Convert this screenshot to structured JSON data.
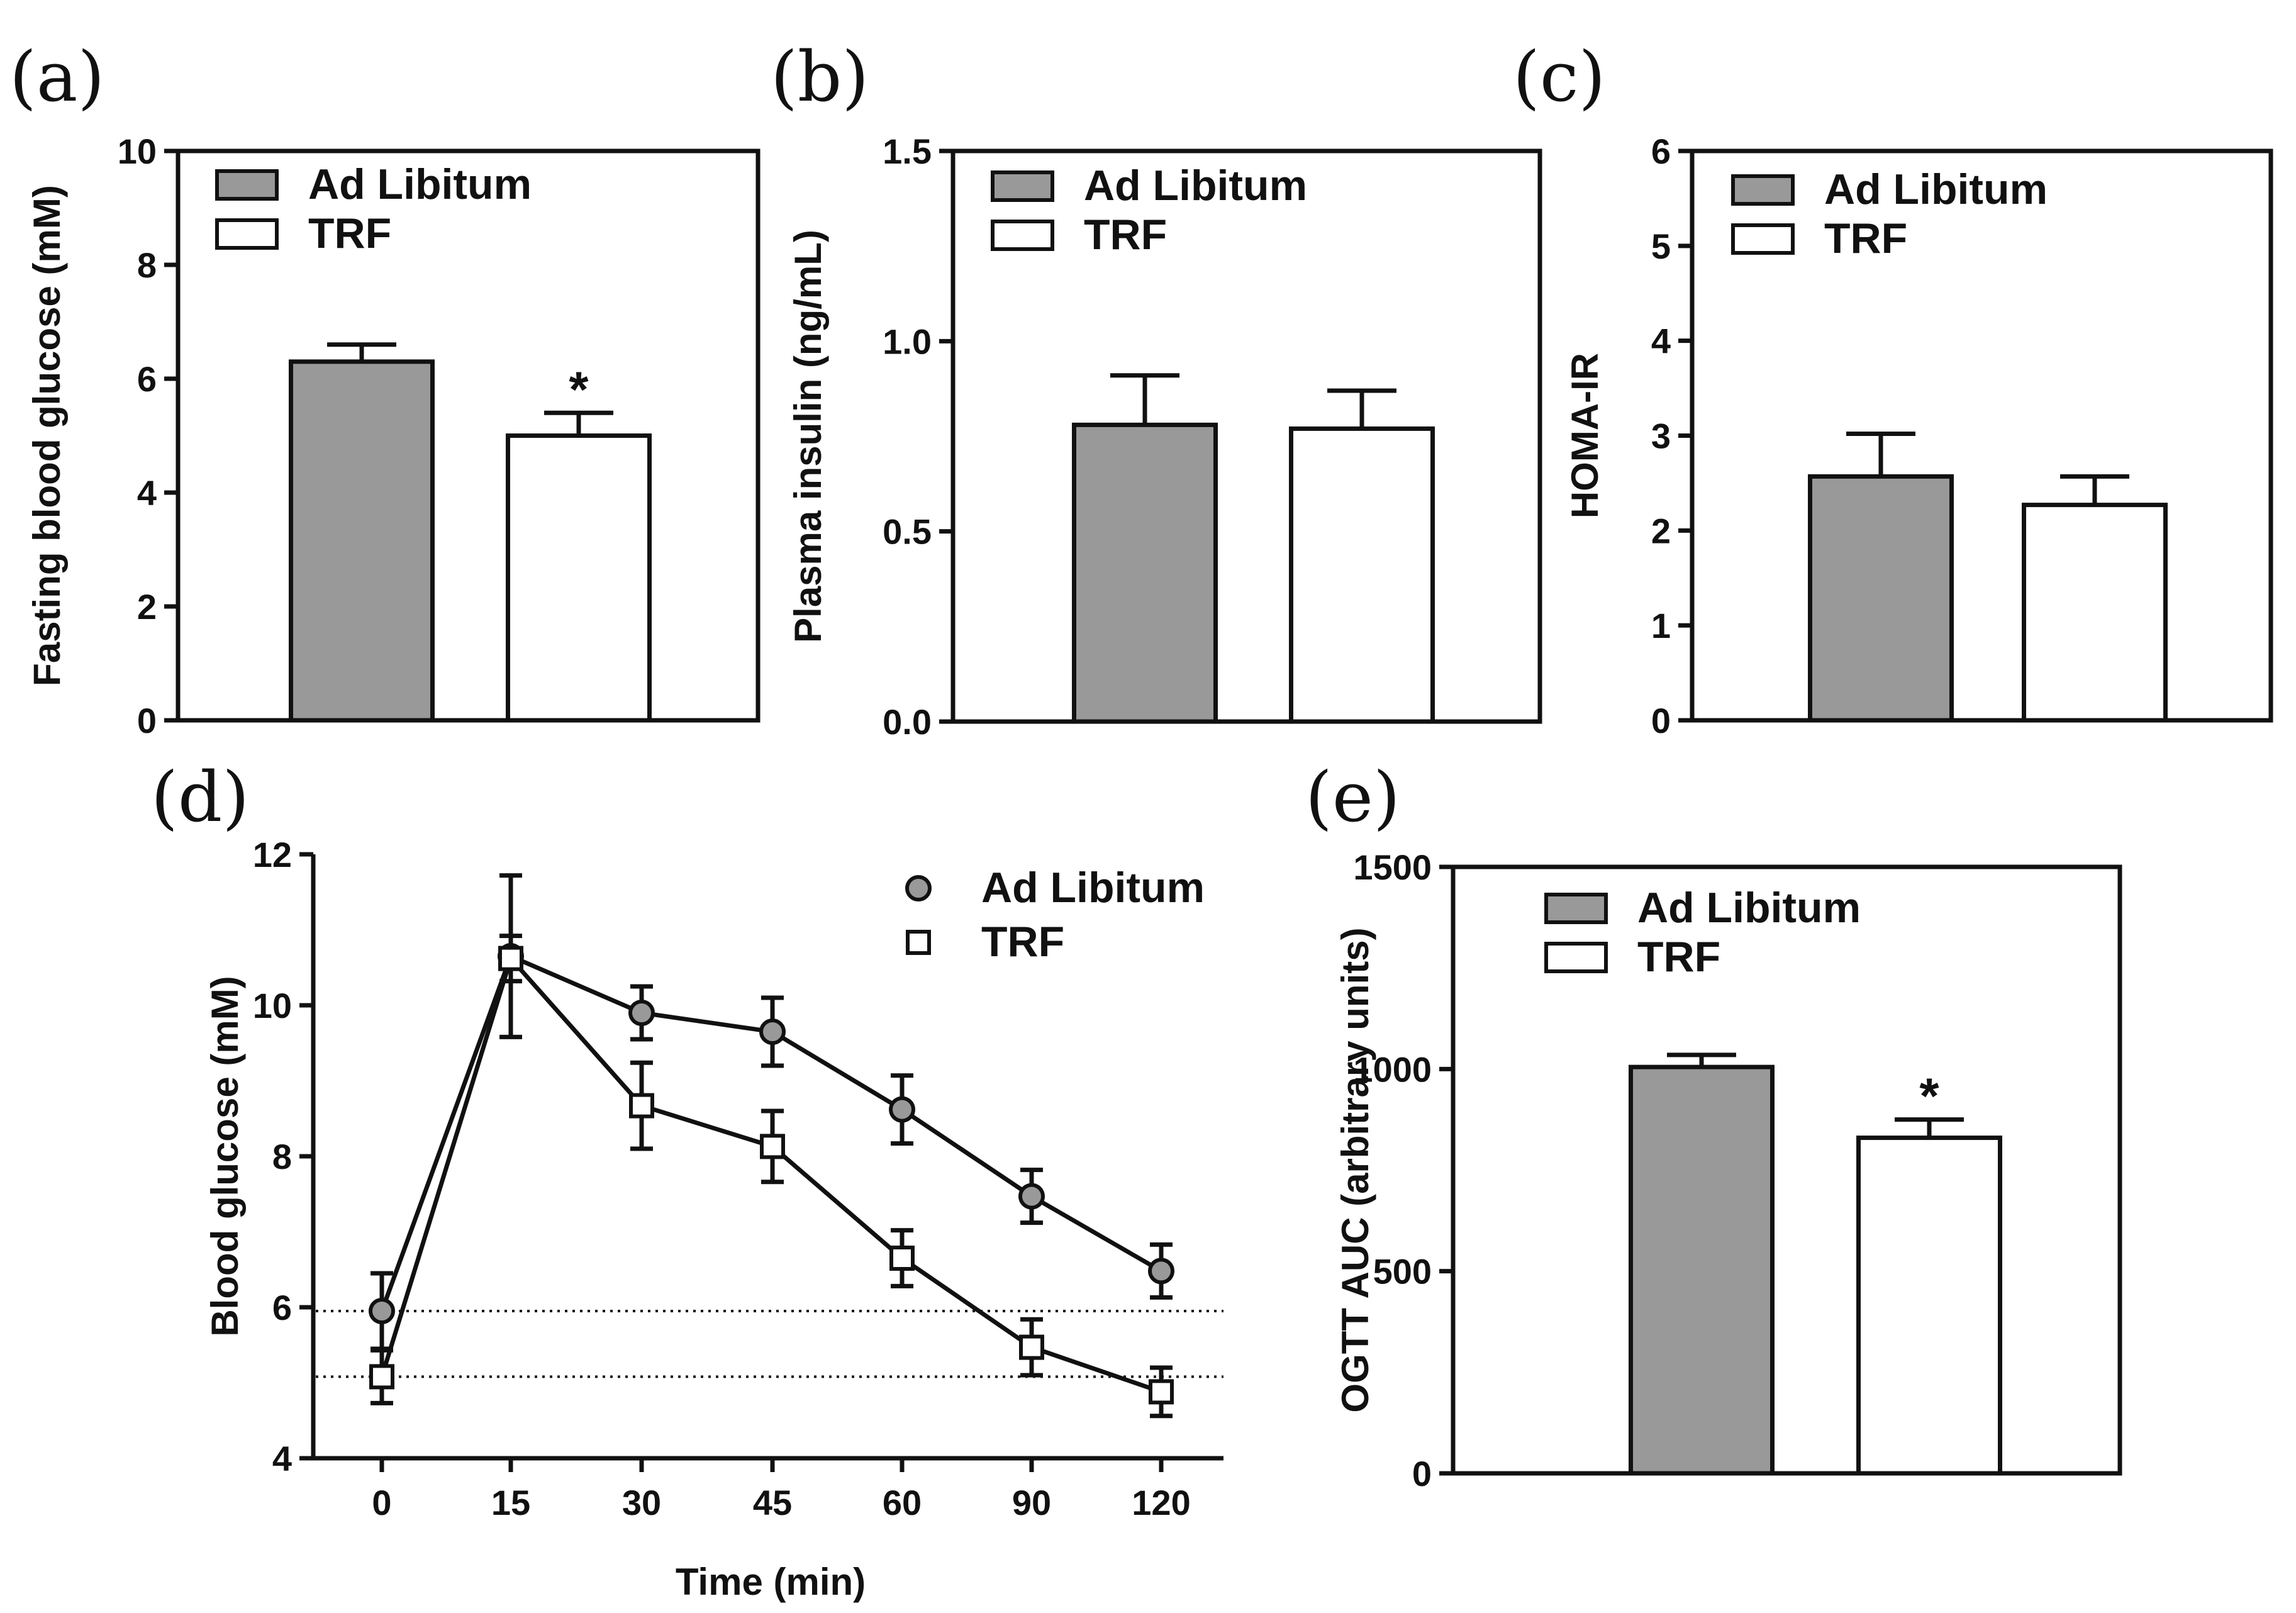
{
  "colors": {
    "ad_libitum": "#999999",
    "trf": "#ffffff",
    "stroke": "#111111"
  },
  "chart_data": [
    {
      "panel": "(a)",
      "type": "bar",
      "ylabel": "Fasting blood glucose (mM)",
      "ylim": [
        0,
        10
      ],
      "yticks": [
        "0",
        "2",
        "4",
        "6",
        "8",
        "10"
      ],
      "categories": [
        "Ad Libitum",
        "TRF"
      ],
      "values": [
        6.3,
        5.0
      ],
      "errors": [
        0.3,
        0.4
      ],
      "significance": [
        "",
        "*"
      ],
      "legend": [
        "Ad Libitum",
        "TRF"
      ],
      "legend_position": "top-left"
    },
    {
      "panel": "(b)",
      "type": "bar",
      "ylabel": "Plasma insulin (ng/mL)",
      "ylim": [
        0,
        1.5
      ],
      "yticks": [
        "0.0",
        "0.5",
        "1.0",
        "1.5"
      ],
      "categories": [
        "Ad Libitum",
        "TRF"
      ],
      "values": [
        0.78,
        0.77
      ],
      "errors": [
        0.13,
        0.1
      ],
      "significance": [
        "",
        ""
      ],
      "legend": [
        "Ad Libitum",
        "TRF"
      ],
      "legend_position": "top-left"
    },
    {
      "panel": "(c)",
      "type": "bar",
      "ylabel": "HOMA-IR",
      "ylim": [
        0,
        6
      ],
      "yticks": [
        "0",
        "1",
        "2",
        "3",
        "4",
        "5",
        "6"
      ],
      "categories": [
        "Ad Libitum",
        "TRF"
      ],
      "values": [
        2.57,
        2.27
      ],
      "errors": [
        0.45,
        0.3
      ],
      "significance": [
        "",
        ""
      ],
      "legend": [
        "Ad Libitum",
        "TRF"
      ],
      "legend_position": "top-left"
    },
    {
      "panel": "(d)",
      "type": "line",
      "xlabel": "Time (min)",
      "ylabel": "Blood glucose (mM)",
      "ylim": [
        4,
        12
      ],
      "yticks": [
        "4",
        "6",
        "8",
        "10",
        "12"
      ],
      "x": [
        "0",
        "15",
        "30",
        "45",
        "60",
        "90",
        "120"
      ],
      "series": [
        {
          "name": "Ad Libitum",
          "marker": "circle",
          "values": [
            5.95,
            10.65,
            9.9,
            9.65,
            8.62,
            7.47,
            6.48
          ],
          "errors": [
            0.5,
            1.07,
            0.35,
            0.45,
            0.45,
            0.35,
            0.35
          ]
        },
        {
          "name": "TRF",
          "marker": "square",
          "values": [
            5.08,
            10.62,
            8.67,
            8.13,
            6.65,
            5.47,
            4.88
          ],
          "errors": [
            0.35,
            0.3,
            0.57,
            0.47,
            0.37,
            0.37,
            0.32
          ]
        }
      ],
      "reference_lines": [
        5.95,
        5.08
      ],
      "legend_position": "top-right"
    },
    {
      "panel": "(e)",
      "type": "bar",
      "ylabel": "OGTT AUC (arbitrary units)",
      "ylim": [
        0,
        1500
      ],
      "yticks": [
        "0",
        "500",
        "1000",
        "1500"
      ],
      "categories": [
        "Ad Libitum",
        "TRF"
      ],
      "values": [
        1005,
        830
      ],
      "errors": [
        30,
        45
      ],
      "significance": [
        "",
        "*"
      ],
      "legend": [
        "Ad Libitum",
        "TRF"
      ],
      "legend_position": "top-left"
    }
  ]
}
